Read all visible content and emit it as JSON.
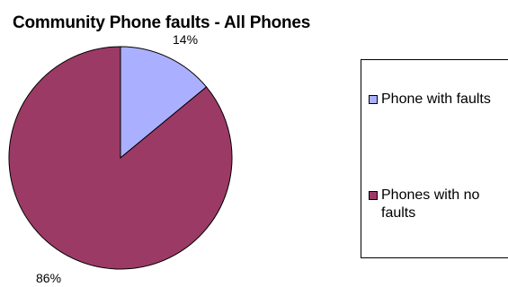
{
  "chart_data": {
    "type": "pie",
    "title": "Community Phone faults - All Phones",
    "categories": [
      "Phone with faults",
      "Phones with no faults"
    ],
    "values": [
      14,
      86
    ],
    "data_labels": [
      "14%",
      "86%"
    ],
    "colors": [
      "#aab0ff",
      "#9c3a66"
    ],
    "legend_position": "right"
  }
}
